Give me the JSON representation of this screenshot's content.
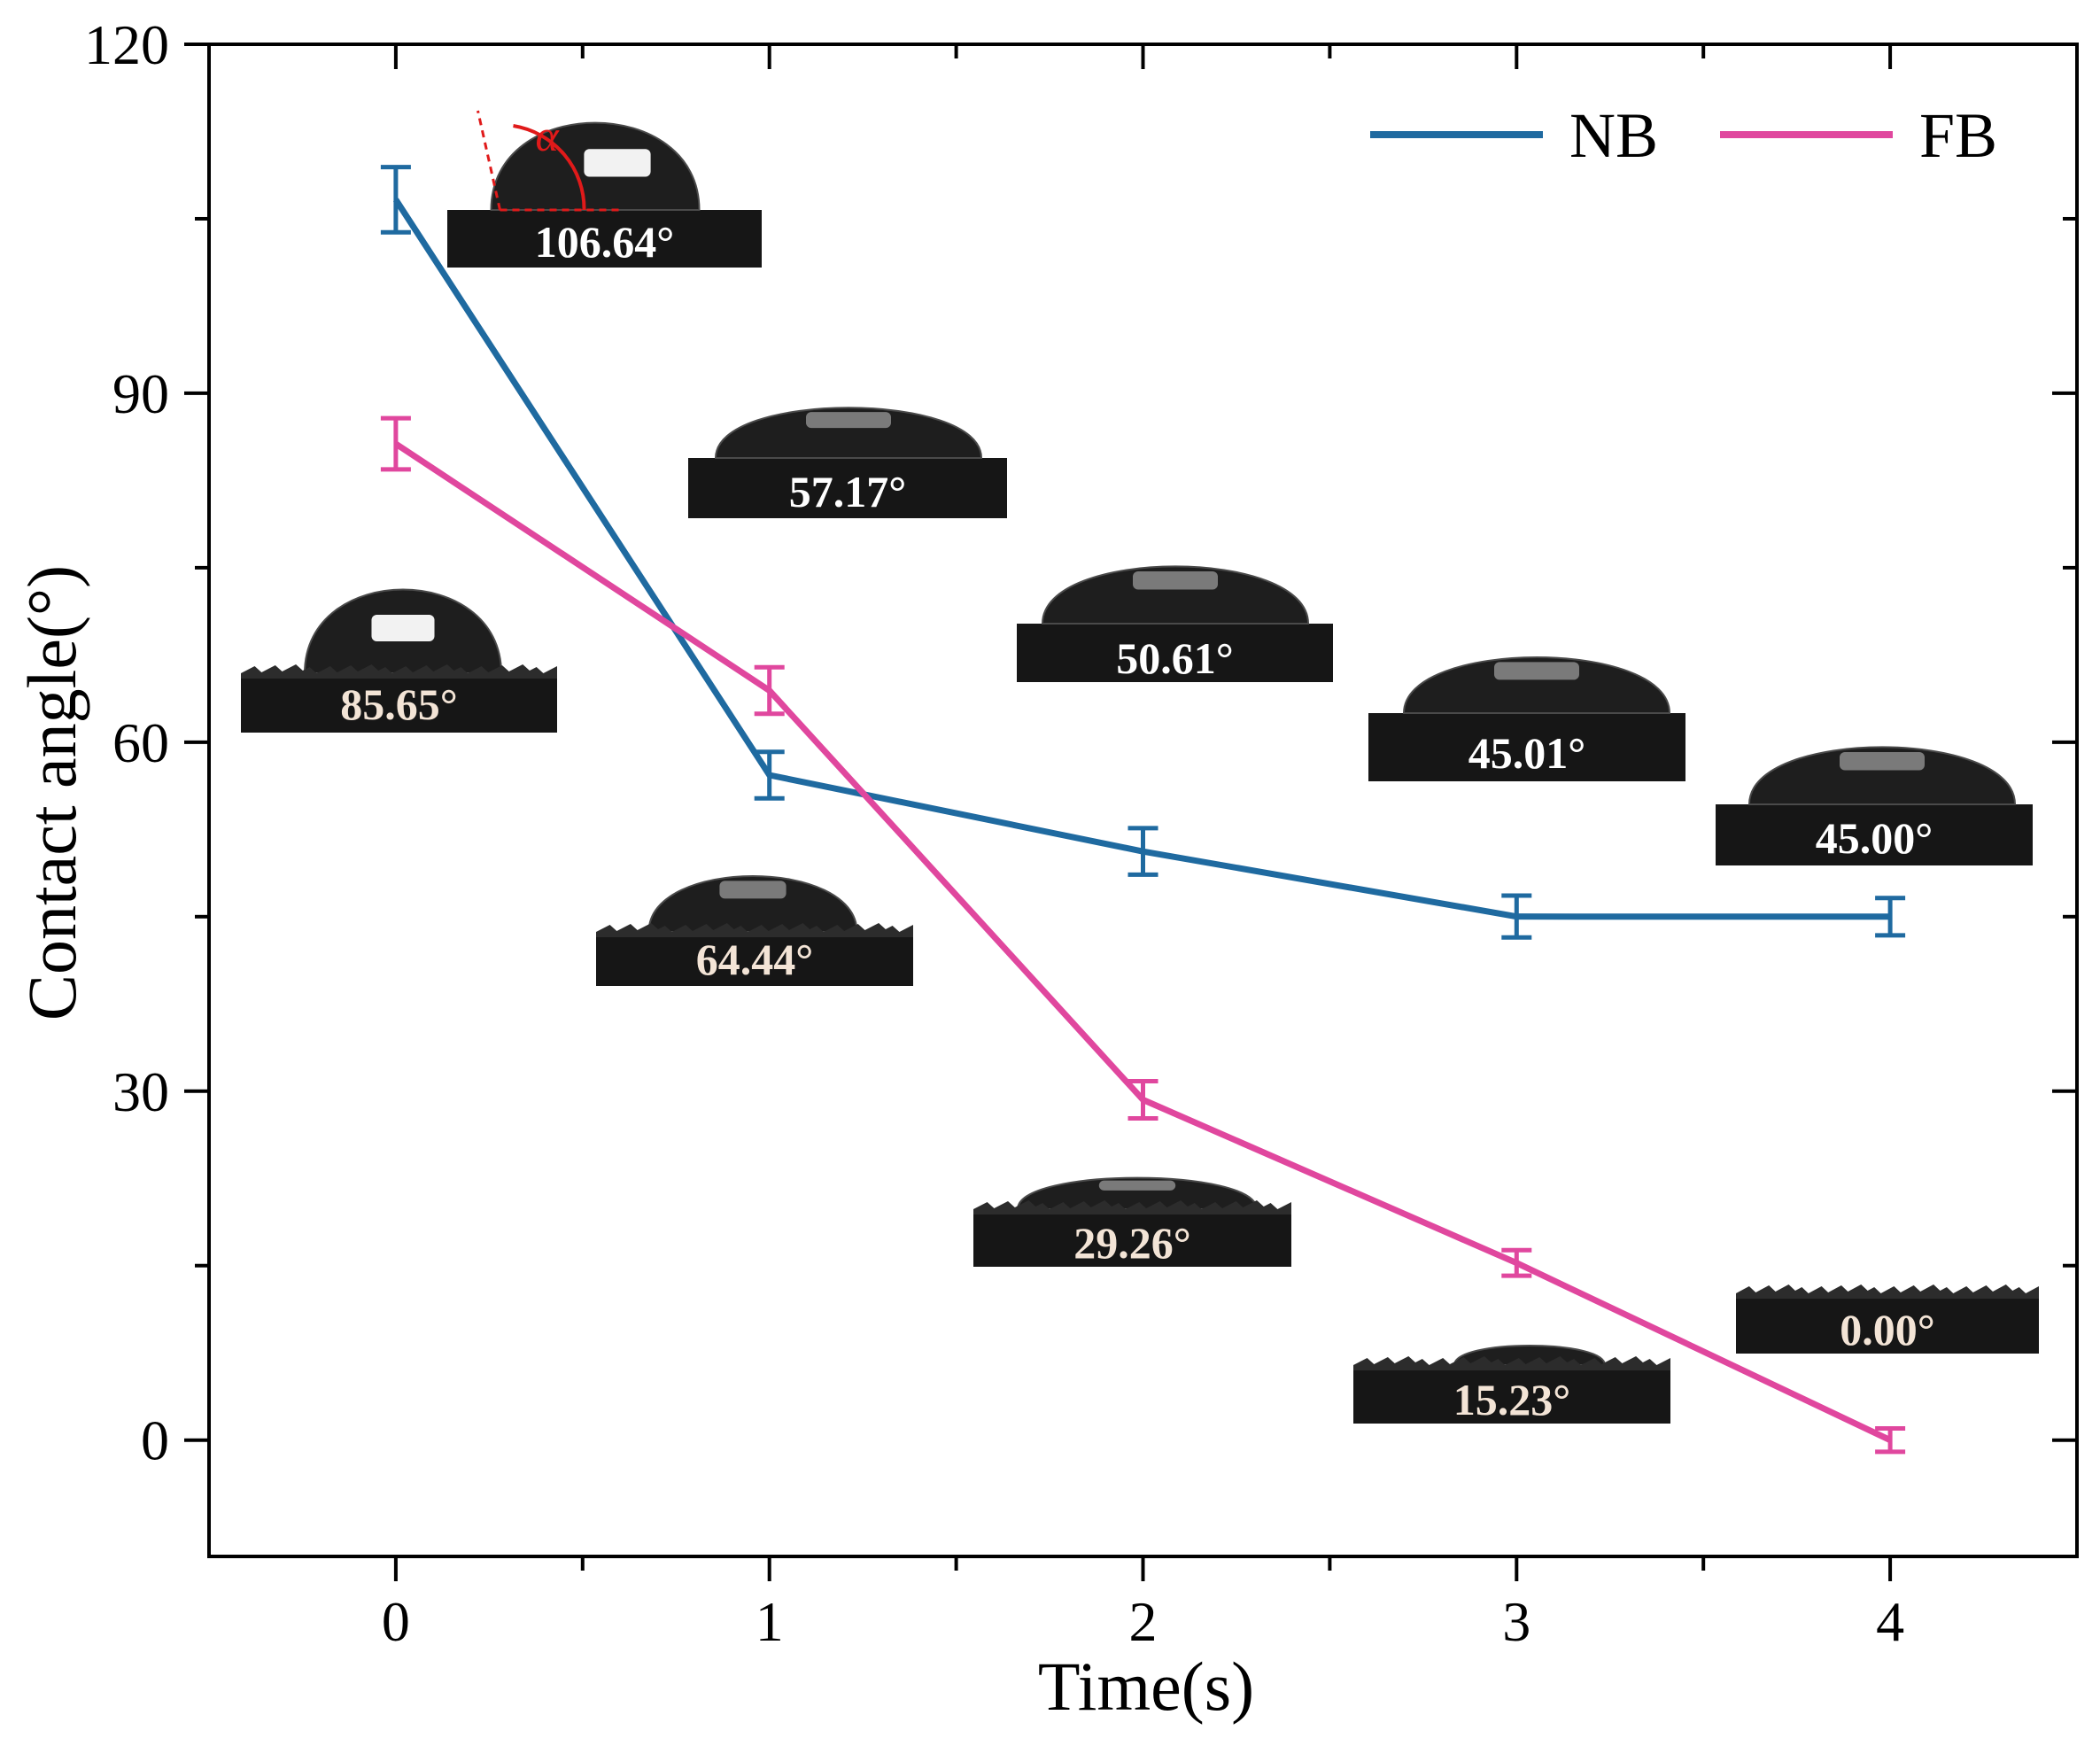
{
  "chart_data": {
    "type": "line",
    "xlabel": "Time(s)",
    "ylabel": "Contact angle(°)",
    "xlim": [
      -0.5,
      4.5
    ],
    "ylim": [
      -10,
      120
    ],
    "x_ticks": [
      0,
      1,
      2,
      3,
      4
    ],
    "x_minor_ticks": [
      0.5,
      1.5,
      2.5,
      3.5
    ],
    "y_ticks": [
      0,
      30,
      60,
      90,
      120
    ],
    "y_minor_ticks": [
      15,
      45,
      75,
      105
    ],
    "legend_position": "top-right",
    "series": [
      {
        "name": "NB",
        "color": "#1f6aa0",
        "x": [
          0,
          1,
          2,
          3,
          4
        ],
        "values": [
          106.64,
          57.17,
          50.61,
          45.01,
          45.0
        ],
        "error": [
          2.8,
          2.0,
          2.0,
          1.8,
          1.6
        ]
      },
      {
        "name": "FB",
        "color": "#e0479e",
        "x": [
          0,
          1,
          2,
          3,
          4
        ],
        "values": [
          85.65,
          64.44,
          29.26,
          15.23,
          0.0
        ],
        "error": [
          2.2,
          2.0,
          1.6,
          1.1,
          1.0
        ]
      }
    ],
    "insets": [
      {
        "series": "NB",
        "label": "106.64°",
        "x": 0,
        "value": 106.64,
        "surface": "smooth",
        "angle_marker": "α"
      },
      {
        "series": "NB",
        "label": "57.17°",
        "x": 1,
        "value": 57.17,
        "surface": "smooth"
      },
      {
        "series": "NB",
        "label": "50.61°",
        "x": 2,
        "value": 50.61,
        "surface": "smooth"
      },
      {
        "series": "NB",
        "label": "45.01°",
        "x": 3,
        "value": 45.01,
        "surface": "smooth"
      },
      {
        "series": "NB",
        "label": "45.00°",
        "x": 4,
        "value": 45.0,
        "surface": "smooth"
      },
      {
        "series": "FB",
        "label": "85.65°",
        "x": 0,
        "value": 85.65,
        "surface": "rough"
      },
      {
        "series": "FB",
        "label": "64.44°",
        "x": 1,
        "value": 64.44,
        "surface": "rough"
      },
      {
        "series": "FB",
        "label": "29.26°",
        "x": 2,
        "value": 29.26,
        "surface": "rough"
      },
      {
        "series": "FB",
        "label": "15.23°",
        "x": 3,
        "value": 15.23,
        "surface": "rough"
      },
      {
        "series": "FB",
        "label": "0.00°",
        "x": 4,
        "value": 0.0,
        "surface": "rough"
      }
    ]
  }
}
